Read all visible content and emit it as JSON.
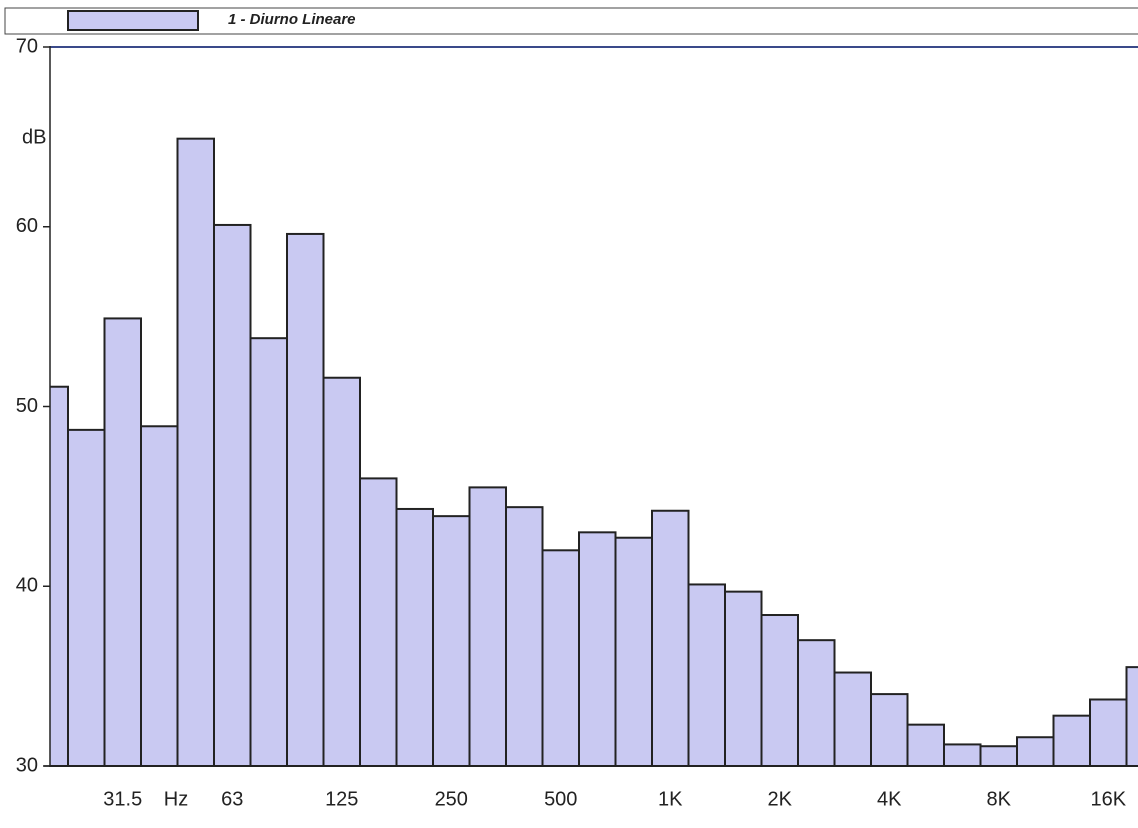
{
  "chart_data": {
    "type": "bar",
    "x_label": "Hz",
    "y_label": "dB",
    "categories": [
      null,
      null,
      "31.5",
      null,
      null,
      "63",
      null,
      null,
      "125",
      null,
      null,
      "250",
      null,
      null,
      "500",
      null,
      null,
      "1K",
      null,
      null,
      "2K",
      null,
      null,
      "4K",
      null,
      null,
      "8K",
      null,
      null,
      "16K",
      null
    ],
    "series": [
      {
        "name": "1 - Diurno  Lineare",
        "color": "#c9c9f2",
        "values": [
          51.1,
          48.7,
          54.9,
          48.9,
          64.9,
          60.1,
          53.8,
          59.6,
          51.6,
          46.0,
          44.3,
          43.9,
          45.5,
          44.4,
          42.0,
          43.0,
          42.7,
          44.2,
          40.1,
          39.7,
          38.4,
          37.0,
          35.2,
          34.0,
          32.3,
          31.2,
          31.1,
          31.6,
          32.8,
          33.7,
          35.5
        ]
      }
    ],
    "ylim": [
      30,
      70
    ],
    "yticks": [
      30,
      40,
      50,
      60,
      70
    ],
    "grid": false
  }
}
